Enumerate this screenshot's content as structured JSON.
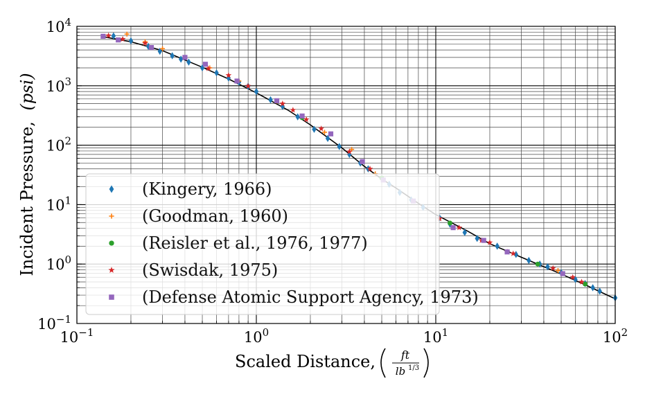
{
  "chart_data": {
    "type": "scatter",
    "title": "",
    "xlabel": "Scaled Distance,",
    "xlabel_unit_num": "ft",
    "xlabel_unit_den": "lb",
    "xlabel_unit_exp": "1/3",
    "ylabel": "Incident Pressure,",
    "ylabel_unit": "(psi)",
    "xscale": "log",
    "yscale": "log",
    "xlim": [
      0.1,
      100
    ],
    "ylim": [
      0.1,
      10000
    ],
    "grid": "both-major-minor",
    "legend_position": "lower-left",
    "x_tick_labels": [
      {
        "base": "10",
        "exp": "−1",
        "value": 0.1
      },
      {
        "base": "10",
        "exp": "0",
        "value": 1
      },
      {
        "base": "10",
        "exp": "1",
        "value": 10
      },
      {
        "base": "10",
        "exp": "2",
        "value": 100
      }
    ],
    "y_tick_labels": [
      {
        "base": "10",
        "exp": "−1",
        "value": 0.1
      },
      {
        "base": "10",
        "exp": "0",
        "value": 1
      },
      {
        "base": "10",
        "exp": "1",
        "value": 10
      },
      {
        "base": "10",
        "exp": "2",
        "value": 100
      },
      {
        "base": "10",
        "exp": "3",
        "value": 1000
      },
      {
        "base": "10",
        "exp": "4",
        "value": 10000
      }
    ],
    "fit_curve": {
      "color": "#000000",
      "points": [
        [
          0.14,
          6700
        ],
        [
          0.2,
          5500
        ],
        [
          0.3,
          3900
        ],
        [
          0.5,
          2050
        ],
        [
          0.7,
          1300
        ],
        [
          1.0,
          760
        ],
        [
          1.5,
          390
        ],
        [
          2.0,
          220
        ],
        [
          3.0,
          90
        ],
        [
          4.0,
          44
        ],
        [
          5.0,
          27
        ],
        [
          6.0,
          19
        ],
        [
          8.0,
          10.5
        ],
        [
          10.0,
          6.8
        ],
        [
          15.0,
          3.6
        ],
        [
          20.0,
          2.2
        ],
        [
          30.0,
          1.3
        ],
        [
          50.0,
          0.68
        ],
        [
          70.0,
          0.43
        ],
        [
          100.0,
          0.26
        ]
      ]
    },
    "series": [
      {
        "name": "(Kingery, 1966)",
        "marker": "diamond",
        "color": "#1f77b4",
        "points": [
          [
            0.16,
            6900
          ],
          [
            0.2,
            5700
          ],
          [
            0.25,
            4600
          ],
          [
            0.29,
            3800
          ],
          [
            0.34,
            3200
          ],
          [
            0.38,
            2800
          ],
          [
            0.42,
            2500
          ],
          [
            0.5,
            2000
          ],
          [
            0.6,
            1650
          ],
          [
            0.7,
            1350
          ],
          [
            0.8,
            1150
          ],
          [
            0.9,
            980
          ],
          [
            1.0,
            800
          ],
          [
            1.2,
            580
          ],
          [
            1.4,
            450
          ],
          [
            1.7,
            300
          ],
          [
            2.1,
            185
          ],
          [
            2.5,
            130
          ],
          [
            2.9,
            95
          ],
          [
            3.3,
            70
          ],
          [
            3.8,
            50
          ],
          [
            4.2,
            40
          ],
          [
            5.5,
            22
          ],
          [
            6.3,
            16
          ],
          [
            7.3,
            12
          ],
          [
            8.5,
            9
          ],
          [
            10.5,
            6
          ],
          [
            12.0,
            4.7
          ],
          [
            14.5,
            3.4
          ],
          [
            17.0,
            2.7
          ],
          [
            22.0,
            2.0
          ],
          [
            28.0,
            1.45
          ],
          [
            33.0,
            1.15
          ],
          [
            38.0,
            1.0
          ],
          [
            42.0,
            0.9
          ],
          [
            50.0,
            0.72
          ],
          [
            60.0,
            0.55
          ],
          [
            68.0,
            0.47
          ],
          [
            75.0,
            0.4
          ],
          [
            82.0,
            0.35
          ],
          [
            100.0,
            0.27
          ]
        ]
      },
      {
        "name": "(Goodman, 1960)",
        "marker": "plus",
        "color": "#ff7f0e",
        "points": [
          [
            0.19,
            7400
          ],
          [
            0.24,
            5500
          ],
          [
            0.3,
            4200
          ],
          [
            0.55,
            2000
          ],
          [
            0.8,
            1200
          ],
          [
            1.3,
            550
          ],
          [
            2.4,
            165
          ],
          [
            3.4,
            85
          ],
          [
            4.6,
            33
          ],
          [
            48.0,
            0.78
          ]
        ]
      },
      {
        "name": "(Reisler et al., 1976, 1977)",
        "marker": "circle",
        "color": "#2ca02c",
        "points": [
          [
            1.8,
            290
          ],
          [
            5.0,
            28
          ],
          [
            12.0,
            4.9
          ],
          [
            37.0,
            1.0
          ],
          [
            68.0,
            0.46
          ]
        ]
      },
      {
        "name": "(Swisdak, 1975)",
        "marker": "star",
        "color": "#d62728",
        "points": [
          [
            0.15,
            7000
          ],
          [
            0.18,
            6100
          ],
          [
            0.24,
            5200
          ],
          [
            0.54,
            1950
          ],
          [
            0.7,
            1500
          ],
          [
            0.9,
            990
          ],
          [
            1.4,
            500
          ],
          [
            1.6,
            390
          ],
          [
            1.9,
            270
          ],
          [
            2.3,
            190
          ],
          [
            3.3,
            78
          ],
          [
            4.3,
            40
          ],
          [
            10.5,
            5.8
          ],
          [
            13.5,
            4.1
          ],
          [
            18.0,
            2.5
          ],
          [
            20.0,
            2.3
          ],
          [
            25.0,
            1.6
          ],
          [
            27.0,
            1.5
          ],
          [
            45.0,
            0.85
          ],
          [
            58.0,
            0.6
          ],
          [
            65.0,
            0.5
          ]
        ]
      },
      {
        "name": "(Defense Atomic Support Agency, 1973)",
        "marker": "square",
        "color": "#9467bd",
        "points": [
          [
            0.14,
            6800
          ],
          [
            0.17,
            5900
          ],
          [
            0.26,
            4400
          ],
          [
            0.4,
            3000
          ],
          [
            0.52,
            2300
          ],
          [
            0.78,
            1200
          ],
          [
            1.3,
            560
          ],
          [
            1.8,
            310
          ],
          [
            2.6,
            155
          ],
          [
            3.9,
            53
          ],
          [
            5.1,
            26
          ],
          [
            7.5,
            11.5
          ],
          [
            12.5,
            4.1
          ],
          [
            18.5,
            2.5
          ],
          [
            25.0,
            1.6
          ],
          [
            51.0,
            0.69
          ]
        ]
      }
    ]
  }
}
